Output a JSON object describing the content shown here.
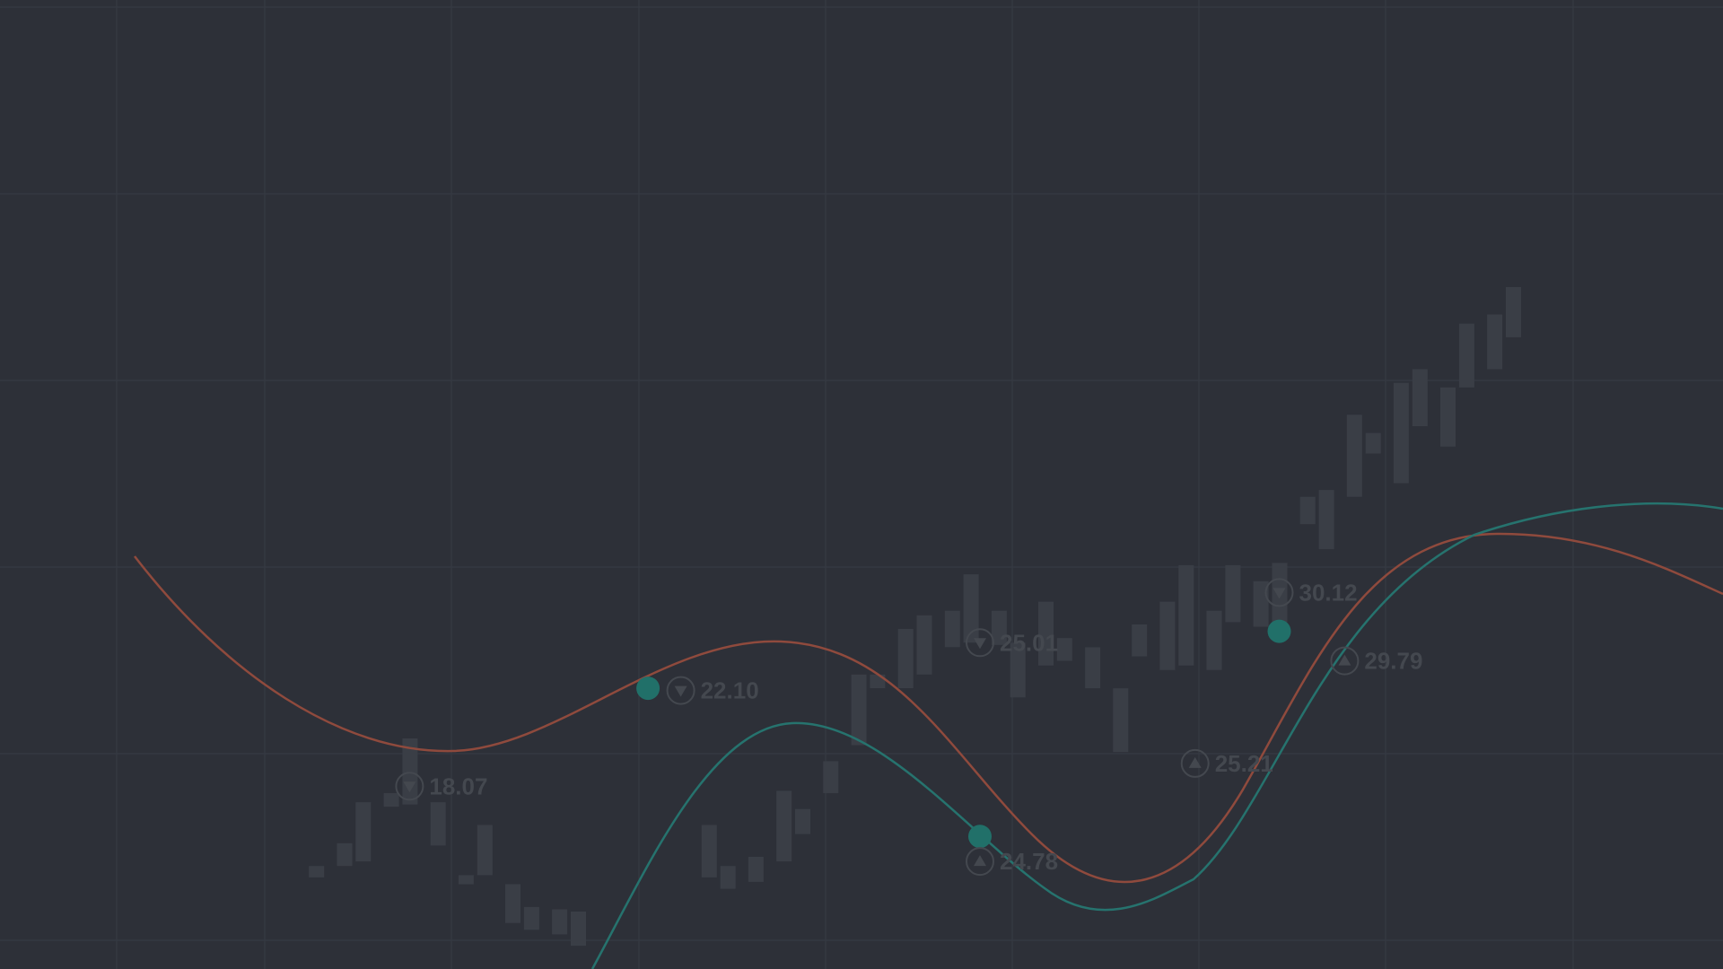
{
  "colors": {
    "background": "#2d3038",
    "grid": "#363a43",
    "candles": "#3a3e46",
    "series_red": "#8f4a3d",
    "series_teal": "#26736e",
    "point": "#217069",
    "label": "#44484f"
  },
  "chart_data": {
    "type": "line",
    "title": "",
    "xlabel": "",
    "ylabel": "",
    "grid": true,
    "legend": "none",
    "series": [
      {
        "color": "#8f4a3d",
        "x": [
          1,
          4,
          7,
          11,
          14,
          18
        ],
        "values": [
          23.5,
          18.5,
          23.4,
          15.0,
          24.0,
          21.3
        ]
      },
      {
        "color": "#26736e",
        "x": [
          4.5,
          7,
          11,
          13.5,
          16.5,
          18
        ],
        "values": [
          6.0,
          19.8,
          13.3,
          22.4,
          25.4,
          25.0
        ]
      }
    ],
    "highlight_points": [
      {
        "x": 7.05,
        "y": 19.8,
        "series": "teal"
      },
      {
        "x": 10.6,
        "y": 13.3,
        "series": "teal"
      },
      {
        "x": 13.8,
        "y": 22.3,
        "series": "teal"
      }
    ],
    "annotations": [
      {
        "text": "18.07",
        "direction": "down",
        "x": 4.5,
        "y": 15.5
      },
      {
        "text": "22.10",
        "direction": "down",
        "x": 7.4,
        "y": 19.7
      },
      {
        "text": "25.01",
        "direction": "down",
        "x": 10.6,
        "y": 21.8
      },
      {
        "text": "24.78",
        "direction": "up",
        "x": 10.6,
        "y": 12.2
      },
      {
        "text": "25.21",
        "direction": "up",
        "x": 12.9,
        "y": 16.5
      },
      {
        "text": "30.12",
        "direction": "down",
        "x": 13.8,
        "y": 24.0
      },
      {
        "text": "29.79",
        "direction": "up",
        "x": 14.5,
        "y": 21.0
      }
    ],
    "candlesticks": {
      "color": "#3a3e46",
      "bars": [
        {
          "x": 3.5,
          "low": 11.5,
          "high": 12.0
        },
        {
          "x": 3.8,
          "low": 12.0,
          "high": 13.0
        },
        {
          "x": 4.0,
          "low": 12.2,
          "high": 14.8
        },
        {
          "x": 4.3,
          "low": 14.6,
          "high": 15.2
        },
        {
          "x": 4.5,
          "low": 14.7,
          "high": 17.6
        },
        {
          "x": 4.8,
          "low": 12.9,
          "high": 14.8
        },
        {
          "x": 5.1,
          "low": 11.2,
          "high": 11.6
        },
        {
          "x": 5.3,
          "low": 11.6,
          "high": 13.8
        },
        {
          "x": 5.6,
          "low": 9.5,
          "high": 11.2
        },
        {
          "x": 5.8,
          "low": 9.2,
          "high": 10.2
        },
        {
          "x": 6.1,
          "low": 9.0,
          "high": 10.1
        },
        {
          "x": 6.3,
          "low": 8.5,
          "high": 10.0
        },
        {
          "x": 7.7,
          "low": 11.5,
          "high": 13.8
        },
        {
          "x": 7.9,
          "low": 11.0,
          "high": 12.0
        },
        {
          "x": 8.2,
          "low": 11.3,
          "high": 12.4
        },
        {
          "x": 8.5,
          "low": 12.2,
          "high": 15.3
        },
        {
          "x": 8.7,
          "low": 13.4,
          "high": 14.5
        },
        {
          "x": 9.0,
          "low": 15.2,
          "high": 16.6
        },
        {
          "x": 9.3,
          "low": 17.3,
          "high": 20.4
        },
        {
          "x": 9.5,
          "low": 19.8,
          "high": 20.4
        },
        {
          "x": 9.8,
          "low": 19.8,
          "high": 22.4
        },
        {
          "x": 10.0,
          "low": 20.4,
          "high": 23.0
        },
        {
          "x": 10.3,
          "low": 21.6,
          "high": 23.2
        },
        {
          "x": 10.5,
          "low": 21.8,
          "high": 24.8
        },
        {
          "x": 10.8,
          "low": 21.7,
          "high": 23.2
        },
        {
          "x": 11.0,
          "low": 19.4,
          "high": 21.8
        },
        {
          "x": 11.3,
          "low": 20.8,
          "high": 23.6
        },
        {
          "x": 11.5,
          "low": 21.0,
          "high": 22.0
        },
        {
          "x": 11.8,
          "low": 19.8,
          "high": 21.6
        },
        {
          "x": 12.1,
          "low": 17.0,
          "high": 19.8
        },
        {
          "x": 12.3,
          "low": 21.2,
          "high": 22.6
        },
        {
          "x": 12.6,
          "low": 20.6,
          "high": 23.6
        },
        {
          "x": 12.8,
          "low": 20.8,
          "high": 25.2
        },
        {
          "x": 13.1,
          "low": 20.6,
          "high": 23.2
        },
        {
          "x": 13.3,
          "low": 22.7,
          "high": 25.2
        },
        {
          "x": 13.6,
          "low": 22.5,
          "high": 24.5
        },
        {
          "x": 13.8,
          "low": 22.7,
          "high": 25.3
        },
        {
          "x": 14.1,
          "low": 27.0,
          "high": 28.2
        },
        {
          "x": 14.3,
          "low": 25.9,
          "high": 28.5
        },
        {
          "x": 14.6,
          "low": 28.2,
          "high": 31.8
        },
        {
          "x": 14.8,
          "low": 30.1,
          "high": 31.0
        },
        {
          "x": 15.1,
          "low": 28.8,
          "high": 33.2
        },
        {
          "x": 15.3,
          "low": 31.3,
          "high": 33.8
        },
        {
          "x": 15.6,
          "low": 30.4,
          "high": 33.0
        },
        {
          "x": 15.8,
          "low": 33.0,
          "high": 35.8
        },
        {
          "x": 16.1,
          "low": 33.8,
          "high": 36.2
        },
        {
          "x": 16.3,
          "low": 35.2,
          "high": 37.4
        }
      ]
    }
  }
}
